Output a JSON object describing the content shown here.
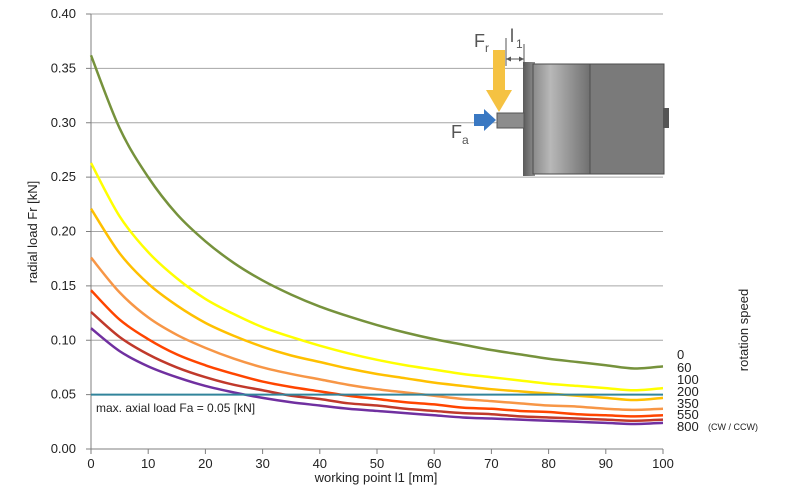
{
  "chart_data": {
    "type": "line",
    "xlabel": "working point l1 [mm]",
    "ylabel": "radial load Fr [kN]",
    "legend_title": "rotation speed",
    "legend_suffix": "(CW / CCW)",
    "xlim": [
      0,
      100
    ],
    "ylim": [
      0,
      0.4
    ],
    "x_ticks": [
      "0",
      "10",
      "20",
      "30",
      "40",
      "50",
      "60",
      "70",
      "80",
      "90",
      "100"
    ],
    "y_ticks": [
      "0.00",
      "0.05",
      "0.10",
      "0.15",
      "0.20",
      "0.25",
      "0.30",
      "0.35",
      "0.40"
    ],
    "grid": "horizontal",
    "legend_position": "right",
    "x": [
      0,
      5,
      10,
      15,
      20,
      25,
      30,
      35,
      40,
      45,
      50,
      55,
      60,
      65,
      70,
      75,
      80,
      85,
      90,
      95,
      100
    ],
    "series": [
      {
        "name": "0",
        "color": "#76923c",
        "values": [
          0.362,
          0.295,
          0.25,
          0.216,
          0.191,
          0.171,
          0.155,
          0.142,
          0.131,
          0.122,
          0.114,
          0.107,
          0.101,
          0.096,
          0.091,
          0.087,
          0.083,
          0.08,
          0.077,
          0.074,
          0.076
        ]
      },
      {
        "name": "60",
        "color": "#ffff00",
        "values": [
          0.263,
          0.214,
          0.181,
          0.157,
          0.138,
          0.124,
          0.112,
          0.103,
          0.095,
          0.088,
          0.082,
          0.077,
          0.073,
          0.069,
          0.066,
          0.063,
          0.06,
          0.058,
          0.056,
          0.054,
          0.056
        ]
      },
      {
        "name": "100",
        "color": "#ffc000",
        "values": [
          0.221,
          0.18,
          0.152,
          0.132,
          0.116,
          0.104,
          0.094,
          0.086,
          0.08,
          0.074,
          0.069,
          0.065,
          0.061,
          0.058,
          0.055,
          0.053,
          0.051,
          0.049,
          0.047,
          0.045,
          0.047
        ]
      },
      {
        "name": "200",
        "color": "#f79646",
        "values": [
          0.176,
          0.144,
          0.121,
          0.105,
          0.093,
          0.083,
          0.075,
          0.069,
          0.064,
          0.059,
          0.055,
          0.052,
          0.049,
          0.046,
          0.044,
          0.042,
          0.04,
          0.039,
          0.037,
          0.036,
          0.037
        ]
      },
      {
        "name": "350",
        "color": "#ff4500",
        "values": [
          0.146,
          0.119,
          0.101,
          0.087,
          0.077,
          0.069,
          0.062,
          0.057,
          0.053,
          0.049,
          0.046,
          0.043,
          0.041,
          0.038,
          0.037,
          0.035,
          0.034,
          0.032,
          0.031,
          0.03,
          0.031
        ]
      },
      {
        "name": "550",
        "color": "#c0392b",
        "values": [
          0.126,
          0.103,
          0.087,
          0.075,
          0.066,
          0.059,
          0.054,
          0.049,
          0.046,
          0.042,
          0.04,
          0.037,
          0.035,
          0.033,
          0.032,
          0.03,
          0.029,
          0.028,
          0.027,
          0.026,
          0.027
        ]
      },
      {
        "name": "800",
        "color": "#7030a0",
        "values": [
          0.111,
          0.09,
          0.076,
          0.066,
          0.058,
          0.052,
          0.047,
          0.043,
          0.04,
          0.037,
          0.035,
          0.033,
          0.031,
          0.029,
          0.028,
          0.027,
          0.026,
          0.025,
          0.024,
          0.023,
          0.024
        ]
      }
    ],
    "axial_limit": {
      "value": 0.05,
      "label": "max. axial load Fa = 0.05 [kN]",
      "color": "#31849b"
    },
    "inset_labels": {
      "fr": "F",
      "fr_sub": "r",
      "fa": "F",
      "fa_sub": "a",
      "l1": "l",
      "l1_sub": "1"
    }
  }
}
